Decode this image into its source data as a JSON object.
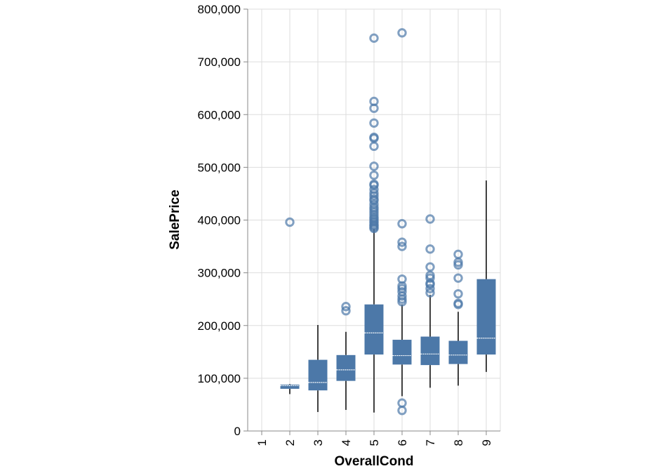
{
  "chart_data": {
    "type": "boxplot",
    "xlabel": "OverallCond",
    "ylabel": "SalePrice",
    "ylim": [
      0,
      800000
    ],
    "yticks": [
      "0",
      "100,000",
      "200,000",
      "300,000",
      "400,000",
      "500,000",
      "600,000",
      "700,000",
      "800,000"
    ],
    "categories": [
      "1",
      "2",
      "3",
      "4",
      "5",
      "6",
      "7",
      "8",
      "9"
    ],
    "grid": true,
    "color": "#4c78a8",
    "boxes": [
      {
        "category": "1",
        "min": null,
        "q1": null,
        "median": null,
        "q3": null,
        "max": null,
        "outliers": []
      },
      {
        "category": "2",
        "min": 70000,
        "q1": 80000,
        "median": 86000,
        "q3": 88000,
        "max": 89000,
        "outliers": [
          396000
        ]
      },
      {
        "category": "3",
        "min": 36000,
        "q1": 77000,
        "median": 92000,
        "q3": 135000,
        "max": 201000,
        "outliers": []
      },
      {
        "category": "4",
        "min": 40000,
        "q1": 95000,
        "median": 116000,
        "q3": 144000,
        "max": 188000,
        "outliers": [
          228000,
          236000
        ]
      },
      {
        "category": "5",
        "min": 35000,
        "q1": 145000,
        "median": 186000,
        "q3": 240000,
        "max": 383000,
        "outliers": [
          384000,
          386000,
          389000,
          391000,
          395000,
          398000,
          402000,
          405000,
          410000,
          415000,
          420000,
          424000,
          430000,
          437000,
          440000,
          446000,
          451000,
          458000,
          466000,
          468000,
          485000,
          502000,
          540000,
          555000,
          557000,
          584000,
          612000,
          625000,
          745000
        ]
      },
      {
        "category": "6",
        "min": 66000,
        "q1": 126000,
        "median": 143000,
        "q3": 173000,
        "max": 240000,
        "outliers": [
          39000,
          53000,
          245000,
          250000,
          256000,
          264000,
          270000,
          275000,
          288000,
          350000,
          358000,
          393000,
          755000
        ]
      },
      {
        "category": "7",
        "min": 82000,
        "q1": 125000,
        "median": 146000,
        "q3": 179000,
        "max": 258000,
        "outliers": [
          262000,
          270000,
          278000,
          280000,
          290000,
          295000,
          311000,
          345000,
          402000
        ]
      },
      {
        "category": "8",
        "min": 86000,
        "q1": 127000,
        "median": 144000,
        "q3": 171000,
        "max": 226000,
        "outliers": [
          240000,
          242000,
          260000,
          290000,
          315000,
          320000,
          335000
        ]
      },
      {
        "category": "9",
        "min": 112000,
        "q1": 145000,
        "median": 176000,
        "q3": 288000,
        "max": 475000,
        "outliers": []
      }
    ]
  }
}
